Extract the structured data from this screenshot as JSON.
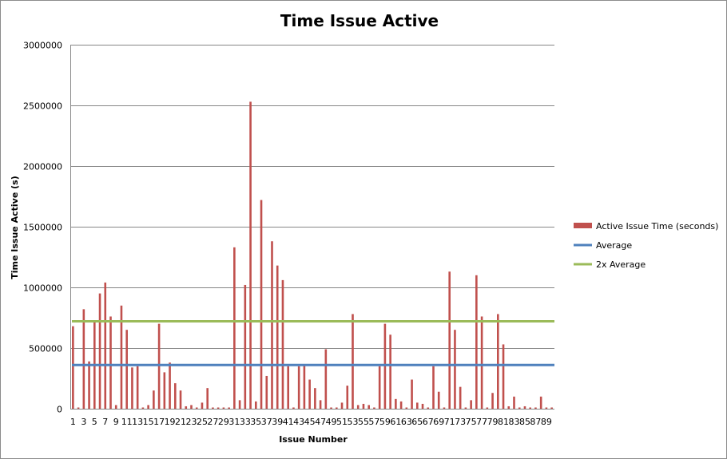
{
  "chart_data": {
    "type": "bar",
    "title": "Time Issue Active",
    "xlabel": "Issue Number",
    "ylabel": "Time Issue Active (s)",
    "ylim": [
      0,
      3000000
    ],
    "yticks": [
      0,
      500000,
      1000000,
      1500000,
      2000000,
      2500000,
      3000000
    ],
    "grid": true,
    "legend_position": "right",
    "categories": [
      1,
      2,
      3,
      4,
      5,
      6,
      7,
      8,
      9,
      10,
      11,
      12,
      13,
      14,
      15,
      16,
      17,
      18,
      19,
      20,
      21,
      22,
      23,
      24,
      25,
      26,
      27,
      28,
      29,
      30,
      31,
      32,
      33,
      34,
      35,
      36,
      37,
      38,
      39,
      40,
      41,
      42,
      43,
      44,
      45,
      46,
      47,
      48,
      49,
      50,
      51,
      52,
      53,
      54,
      55,
      56,
      57,
      58,
      59,
      60,
      61,
      62,
      63,
      64,
      65,
      66,
      67,
      68,
      69,
      70,
      71,
      72,
      73,
      74,
      75,
      76,
      77,
      78,
      79,
      80,
      81,
      82,
      83,
      84,
      85,
      86,
      87,
      88,
      89,
      90
    ],
    "x_tick_labels": [
      "1",
      "3",
      "5",
      "7",
      "9",
      "11",
      "13",
      "15",
      "17",
      "19",
      "21",
      "23",
      "25",
      "27",
      "29",
      "31",
      "33",
      "35",
      "37",
      "39",
      "41",
      "43",
      "45",
      "47",
      "49",
      "51",
      "53",
      "55",
      "57",
      "59",
      "61",
      "63",
      "65",
      "67",
      "69",
      "71",
      "73",
      "75",
      "77",
      "79",
      "81",
      "83",
      "85",
      "87",
      "89"
    ],
    "series": [
      {
        "name": "Active Issue Time (seconds)",
        "type": "bar",
        "color": "#c0504d",
        "values": [
          680000,
          10000,
          820000,
          390000,
          720000,
          950000,
          1040000,
          760000,
          30000,
          850000,
          650000,
          340000,
          350000,
          10000,
          30000,
          150000,
          700000,
          300000,
          380000,
          210000,
          150000,
          20000,
          30000,
          10000,
          50000,
          170000,
          10000,
          10000,
          10000,
          10000,
          1330000,
          70000,
          1020000,
          2530000,
          60000,
          1720000,
          270000,
          1380000,
          1180000,
          1060000,
          350000,
          10000,
          350000,
          360000,
          240000,
          170000,
          70000,
          490000,
          10000,
          10000,
          50000,
          190000,
          780000,
          30000,
          40000,
          30000,
          10000,
          350000,
          700000,
          610000,
          80000,
          60000,
          10000,
          240000,
          50000,
          40000,
          10000,
          350000,
          140000,
          10000,
          1130000,
          650000,
          180000,
          10000,
          70000,
          1100000,
          760000,
          10000,
          130000,
          780000,
          530000,
          20000,
          100000,
          10000,
          20000,
          10000,
          10000,
          100000,
          10000,
          10000
        ]
      },
      {
        "name": "Average",
        "type": "line",
        "color": "#4f81bd",
        "value": 360000
      },
      {
        "name": "2x Average",
        "type": "line",
        "color": "#9bbb59",
        "value": 720000
      }
    ]
  }
}
